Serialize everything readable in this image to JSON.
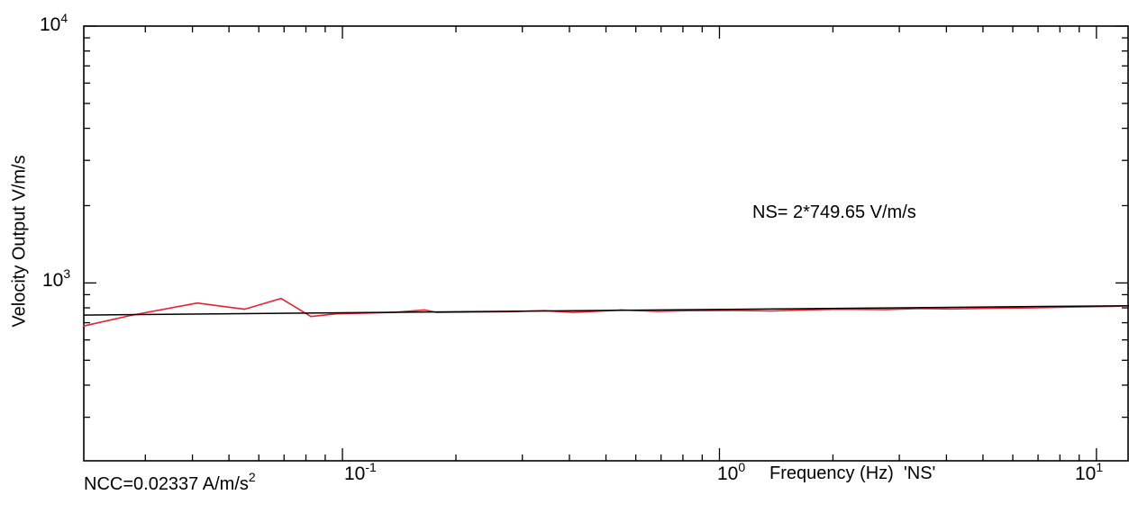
{
  "chart_data": {
    "type": "line",
    "ylabel": "Velocity Output V/m/s",
    "xlabel": "Frequency (Hz)",
    "xlabel_suffix": "'NS'",
    "annotation": "NS= 2*749.65 V/m/s",
    "ncc_text": "NCC=0.02337 A/m/s",
    "ncc_exp": "2",
    "x_scale": "log",
    "y_scale": "log",
    "xlim": [
      0.0206,
      12.2
    ],
    "ylim": [
      203,
      10000
    ],
    "x_ticks": [
      {
        "base": "10",
        "exp": "-1"
      },
      {
        "base": "10",
        "exp": "0"
      },
      {
        "base": "10",
        "exp": "1"
      }
    ],
    "y_ticks": [
      {
        "base": "10",
        "exp": "3"
      },
      {
        "base": "10",
        "exp": "4"
      }
    ],
    "grid": false,
    "series": [
      {
        "color": "#e8202a",
        "x": [
          0.0206,
          0.0275,
          0.0412,
          0.055,
          0.0687,
          0.0825,
          0.0962,
          0.11,
          0.137,
          0.165,
          0.178,
          0.206,
          0.275,
          0.343,
          0.412,
          0.55,
          0.687,
          0.825,
          1.1,
          1.37,
          1.65,
          2.06,
          2.75,
          3.43,
          4.12,
          5.5,
          6.87,
          8.25,
          9.62,
          11.0,
          12.2
        ],
        "y": [
          680,
          748,
          835,
          790,
          870,
          740,
          758,
          762,
          768,
          785,
          768,
          770,
          773,
          780,
          768,
          785,
          775,
          780,
          782,
          778,
          785,
          790,
          788,
          795,
          792,
          798,
          800,
          805,
          808,
          810,
          815
        ]
      },
      {
        "color": "#000000",
        "x": [
          0.0206,
          12.2
        ],
        "y": [
          749.65,
          815
        ]
      }
    ]
  }
}
